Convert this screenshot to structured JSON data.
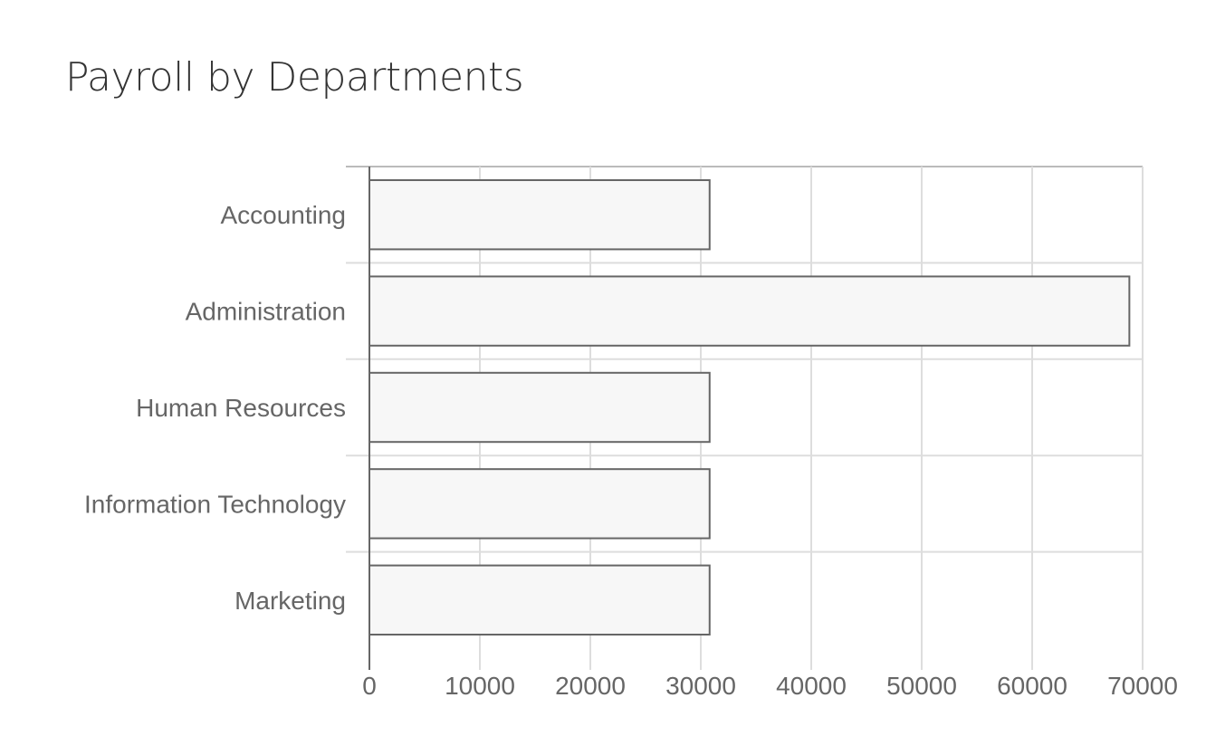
{
  "chart_data": {
    "type": "bar",
    "orientation": "horizontal",
    "title": "Payroll by Departments",
    "xlabel": "",
    "ylabel": "",
    "categories": [
      "Accounting",
      "Administration",
      "Human Resources",
      "Information Technology",
      "Marketing"
    ],
    "values": [
      30800,
      68800,
      30800,
      30800,
      30800
    ],
    "xlim": [
      0,
      70000
    ],
    "xticks": [
      0,
      10000,
      20000,
      30000,
      40000,
      50000,
      60000,
      70000
    ],
    "grid": true,
    "legend": "none",
    "colors": {
      "bar_fill": "#f7f7f7",
      "bar_stroke": "#666666",
      "grid": "#dddddd",
      "axis": "#666666",
      "text": "#666666",
      "title": "#333333"
    }
  }
}
